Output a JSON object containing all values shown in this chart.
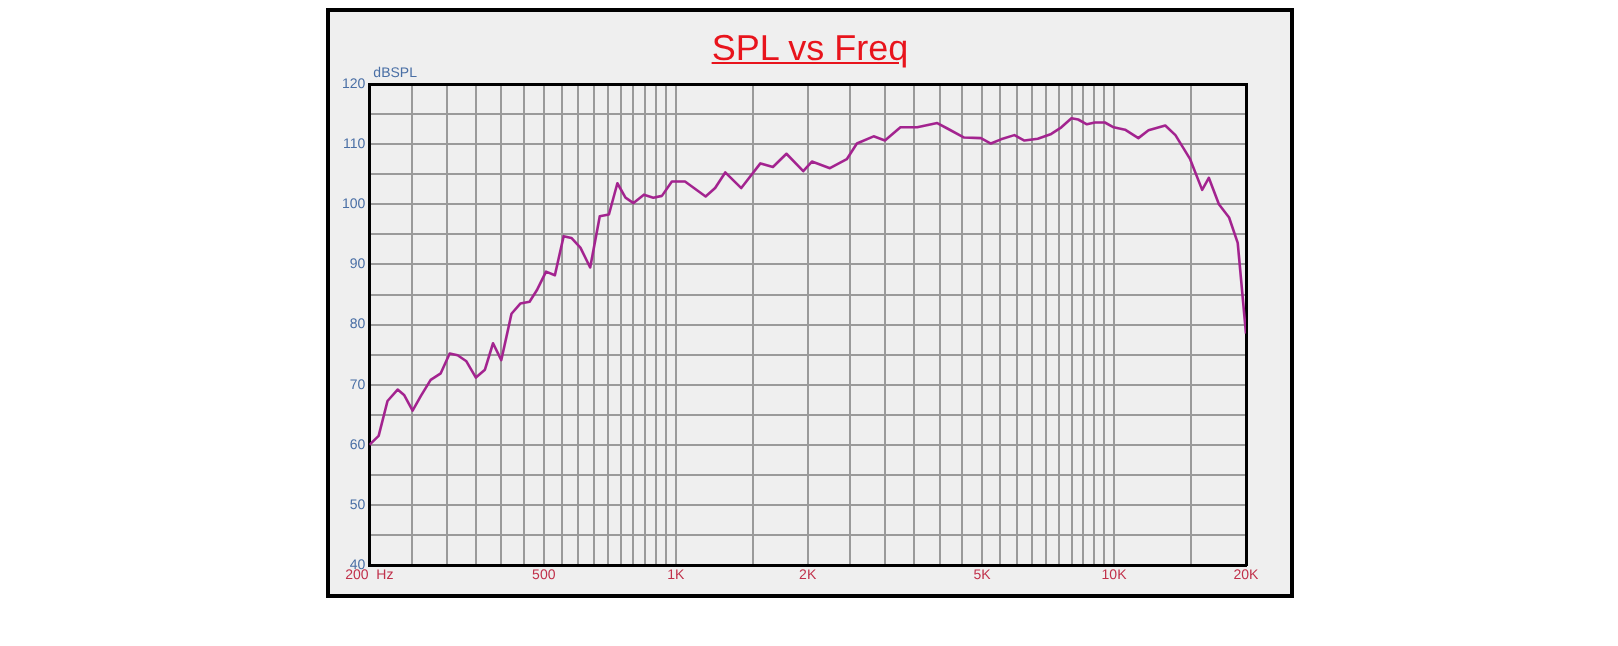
{
  "chart_data": {
    "type": "line",
    "title": "SPL vs Freq",
    "ylabel": "dBSPL",
    "log": "x",
    "grid": true,
    "xlim": [
      200,
      20000
    ],
    "ylim": [
      40,
      120
    ],
    "xticks": [
      {
        "value": 200,
        "label": "200  Hz"
      },
      {
        "value": 250,
        "label": null
      },
      {
        "value": 300,
        "label": null
      },
      {
        "value": 350,
        "label": null
      },
      {
        "value": 400,
        "label": null
      },
      {
        "value": 450,
        "label": null
      },
      {
        "value": 500,
        "label": "500"
      },
      {
        "value": 550,
        "label": null
      },
      {
        "value": 600,
        "label": null
      },
      {
        "value": 650,
        "label": null
      },
      {
        "value": 700,
        "label": null
      },
      {
        "value": 750,
        "label": null
      },
      {
        "value": 800,
        "label": null
      },
      {
        "value": 850,
        "label": null
      },
      {
        "value": 900,
        "label": null
      },
      {
        "value": 950,
        "label": null
      },
      {
        "value": 1000,
        "label": "1K"
      },
      {
        "value": 1500,
        "label": null
      },
      {
        "value": 2000,
        "label": "2K"
      },
      {
        "value": 2500,
        "label": null
      },
      {
        "value": 3000,
        "label": null
      },
      {
        "value": 3500,
        "label": null
      },
      {
        "value": 4000,
        "label": null
      },
      {
        "value": 4500,
        "label": null
      },
      {
        "value": 5000,
        "label": "5K"
      },
      {
        "value": 5500,
        "label": null
      },
      {
        "value": 6000,
        "label": null
      },
      {
        "value": 6500,
        "label": null
      },
      {
        "value": 7000,
        "label": null
      },
      {
        "value": 7500,
        "label": null
      },
      {
        "value": 8000,
        "label": null
      },
      {
        "value": 8500,
        "label": null
      },
      {
        "value": 9000,
        "label": null
      },
      {
        "value": 9500,
        "label": null
      },
      {
        "value": 10000,
        "label": "10K"
      },
      {
        "value": 15000,
        "label": null
      },
      {
        "value": 20000,
        "label": "20K"
      }
    ],
    "yticks": [
      40,
      {
        "value": 45,
        "label": null
      },
      50,
      {
        "value": 55,
        "label": null
      },
      60,
      {
        "value": 65,
        "label": null
      },
      70,
      {
        "value": 75,
        "label": null
      },
      80,
      {
        "value": 85,
        "label": null
      },
      90,
      {
        "value": 95,
        "label": null
      },
      100,
      {
        "value": 105,
        "label": null
      },
      110,
      {
        "value": 115,
        "label": null
      },
      120
    ],
    "series": [
      {
        "color": "#a3238f",
        "x": [
          200,
          210,
          220,
          232,
          240,
          251,
          262,
          276,
          291,
          305,
          318,
          333,
          350,
          367,
          383,
          400,
          422,
          442,
          464,
          482,
          506,
          530,
          555,
          578,
          606,
          638,
          671,
          704,
          736,
          768,
          801,
          846,
          889,
          930,
          980,
          1050,
          1170,
          1230,
          1297,
          1411,
          1560,
          1666,
          1789,
          1954,
          2045,
          2248,
          2456,
          2590,
          2828,
          3001,
          3256,
          3556,
          3950,
          4166,
          4550,
          4969,
          5236,
          5521,
          5923,
          6244,
          6699,
          7191,
          7581,
          7996,
          8282,
          8670,
          9041,
          9531,
          9980,
          10594,
          11363,
          11984,
          13087,
          13805,
          14914,
          15886,
          16451,
          17347,
          18299,
          19148,
          20000
        ],
        "values": [
          60.0,
          61.5,
          67.3,
          69.2,
          68.3,
          65.7,
          68.1,
          70.8,
          71.9,
          75.2,
          74.9,
          73.9,
          71.2,
          72.5,
          76.9,
          74.1,
          81.8,
          83.5,
          83.8,
          85.7,
          88.8,
          88.2,
          94.7,
          94.4,
          92.8,
          89.5,
          98.0,
          98.3,
          103.5,
          101.1,
          100.2,
          101.6,
          101.1,
          101.4,
          103.8,
          103.8,
          101.3,
          102.7,
          105.3,
          102.7,
          106.8,
          106.2,
          108.4,
          105.5,
          107.1,
          106.0,
          107.5,
          110.1,
          111.3,
          110.6,
          112.8,
          112.8,
          113.5,
          112.6,
          111.1,
          111.0,
          110.1,
          110.8,
          111.5,
          110.6,
          110.9,
          111.7,
          112.8,
          114.3,
          114.1,
          113.3,
          113.6,
          113.6,
          112.8,
          112.4,
          111.0,
          112.3,
          113.1,
          111.5,
          107.5,
          102.4,
          104.4,
          100.0,
          97.8,
          93.6,
          78.5
        ]
      }
    ]
  }
}
